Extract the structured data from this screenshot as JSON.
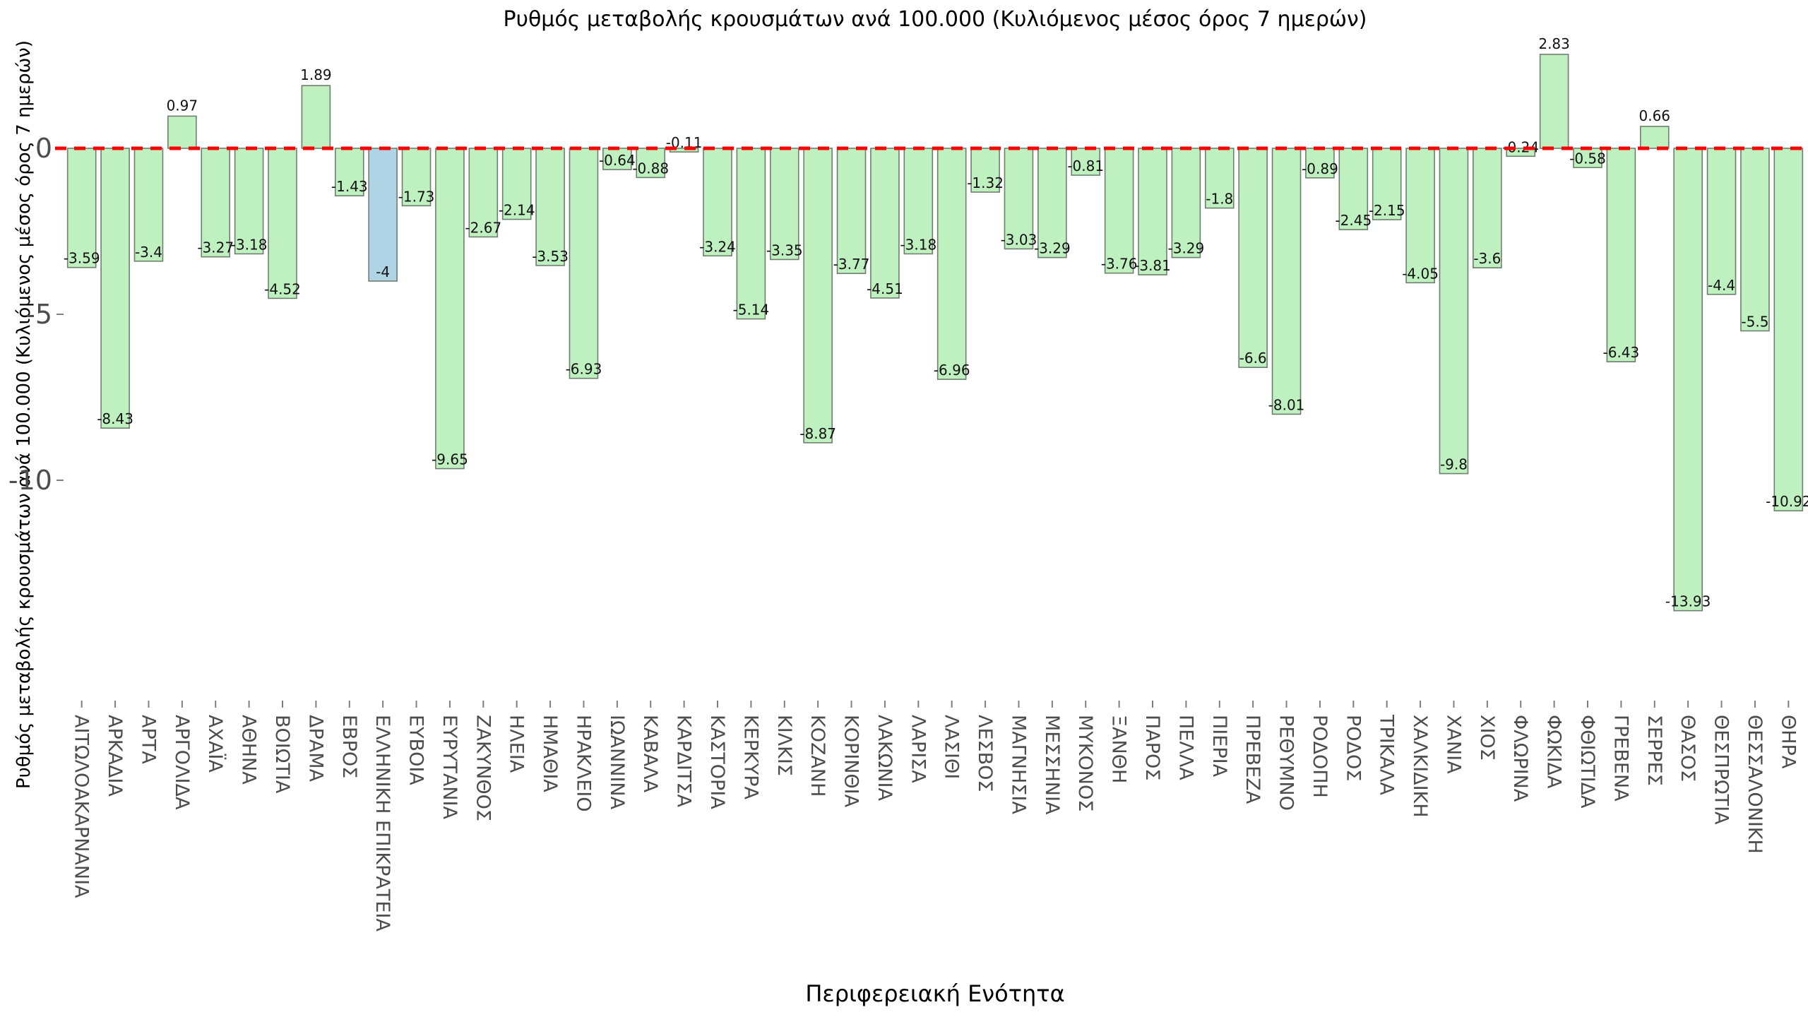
{
  "title": "Ρυθμός μεταβολής κρουσμάτων ανά 100.000 (Κυλιόμενος μέσος όρος 7 ημερών)",
  "xlabel": "Περιφερειακή Ενότητα",
  "ylabel": "Ρυθμός μεταβολής κρουσμάτων ανά 100.000 (Κυλιόμενος μέσος όρος 7 ημερών)",
  "colors": {
    "bar_fill": "#bff0bf",
    "highlight_fill": "#aed4e6",
    "bar_border": "#6f7f6f",
    "zero_line": "#ff0000",
    "tick_text": "#4d4d4d",
    "category_text": "#4d4d4d",
    "value_text": "#111111",
    "tick_mark": "#808080"
  },
  "chart_data": {
    "type": "bar",
    "title": "Ρυθμός μεταβολής κρουσμάτων ανά 100.000 (Κυλιόμενος μέσος όρος 7 ημερών)",
    "xlabel": "Περιφερειακή Ενότητα",
    "ylabel": "Ρυθμός μεταβολής κρουσμάτων ανά 100.000 (Κυλιόμενος μέσος όρος 7 ημερών)",
    "grid": false,
    "legend": false,
    "zero_line": {
      "style": "dashed",
      "color": "#ff0000"
    },
    "ylim": [
      -17.5,
      3.2
    ],
    "yticks": [
      {
        "value": 0,
        "label": "0"
      },
      {
        "value": -5,
        "label": "-5"
      },
      {
        "value": -10,
        "label": "-10"
      }
    ],
    "highlight_index": 9,
    "highlight_category": "ΕΛΛΗΝΙΚΗ ΕΠΙΚΡΑΤΕΙΑ",
    "categories": [
      "ΑΙΤΩΛΟΑΚΑΡΝΑΝΙΑ",
      "ΑΡΚΑΔΙΑ",
      "ΑΡΤΑ",
      "ΑΡΓΟΛΙΔΑ",
      "ΑΧΑΪΑ",
      "ΑΘΗΝΑ",
      "ΒΟΙΩΤΙΑ",
      "ΔΡΑΜΑ",
      "ΕΒΡΟΣ",
      "ΕΛΛΗΝΙΚΗ ΕΠΙΚΡΑΤΕΙΑ",
      "ΕΥΒΟΙΑ",
      "ΕΥΡΥΤΑΝΙΑ",
      "ΖΑΚΥΝΘΟΣ",
      "ΗΛΕΙΑ",
      "ΗΜΑΘΙΑ",
      "ΗΡΑΚΛΕΙΟ",
      "ΙΩΑΝΝΙΝΑ",
      "ΚΑΒΑΛΑ",
      "ΚΑΡΔΙΤΣΑ",
      "ΚΑΣΤΟΡΙΑ",
      "ΚΕΡΚΥΡΑ",
      "ΚΙΛΚΙΣ",
      "ΚΟΖΑΝΗ",
      "ΚΟΡΙΝΘΙΑ",
      "ΛΑΚΩΝΙΑ",
      "ΛΑΡΙΣΑ",
      "ΛΑΣΙΘΙ",
      "ΛΕΣΒΟΣ",
      "ΜΑΓΝΗΣΙΑ",
      "ΜΕΣΣΗΝΙΑ",
      "ΜΥΚΟΝΟΣ",
      "ΞΑΝΘΗ",
      "ΠΑΡΟΣ",
      "ΠΕΛΛΑ",
      "ΠΙΕΡΙΑ",
      "ΠΡΕΒΕΖΑ",
      "ΡΕΘΥΜΝΟ",
      "ΡΟΔΟΠΗ",
      "ΡΟΔΟΣ",
      "ΤΡΙΚΑΛΑ",
      "ΧΑΛΚΙΔΙΚΗ",
      "ΧΑΝΙΑ",
      "ΧΙΟΣ",
      "ΦΛΩΡΙΝΑ",
      "ΦΩΚΙΔΑ",
      "ΦΘΙΩΤΙΔΑ",
      "ΓΡΕΒΕΝΑ",
      "ΣΕΡΡΕΣ",
      "ΘΑΣΟΣ",
      "ΘΕΣΠΡΩΤΙΑ",
      "ΘΕΣΣΑΛΟΝΙΚΗ",
      "ΘΗΡΑ"
    ],
    "values": [
      -3.59,
      -8.43,
      -3.4,
      0.97,
      -3.27,
      -3.18,
      -4.52,
      1.89,
      -1.43,
      -4,
      -1.73,
      -9.65,
      -2.67,
      -2.14,
      -3.53,
      -6.93,
      -0.64,
      -0.88,
      -0.11,
      -3.24,
      -5.14,
      -3.35,
      -8.87,
      -3.77,
      -4.51,
      -3.18,
      -6.96,
      -1.32,
      -3.03,
      -3.29,
      -0.81,
      -3.76,
      -3.81,
      -3.29,
      -1.8,
      -6.6,
      -8.01,
      -0.89,
      -2.45,
      -2.15,
      -4.05,
      -9.8,
      -3.6,
      -0.24,
      2.83,
      -0.58,
      -6.43,
      0.66,
      -13.93,
      -4.4,
      -5.5,
      -10.92
    ],
    "value_labels": [
      "-3.59",
      "-8.43",
      "-3.4",
      "0.97",
      "-3.27",
      "-3.18",
      "-4.52",
      "1.89",
      "-1.43",
      "-4",
      "-1.73",
      "-9.65",
      "-2.67",
      "-2.14",
      "-3.53",
      "-6.93",
      "-0.64",
      "-0.88",
      "-0.11",
      "-3.24",
      "-5.14",
      "-3.35",
      "-8.87",
      "-3.77",
      "-4.51",
      "-3.18",
      "-6.96",
      "-1.32",
      "-3.03",
      "-3.29",
      "-0.81",
      "-3.76",
      "-3.81",
      "-3.29",
      "-1.8",
      "-6.6",
      "-8.01",
      "-0.89",
      "-2.45",
      "-2.15",
      "-4.05",
      "-9.8",
      "-3.6",
      "-0.24",
      "2.83",
      "-0.58",
      "-6.43",
      "0.66",
      "-13.93",
      "-4.4",
      "-5.5",
      "-10.92"
    ]
  }
}
